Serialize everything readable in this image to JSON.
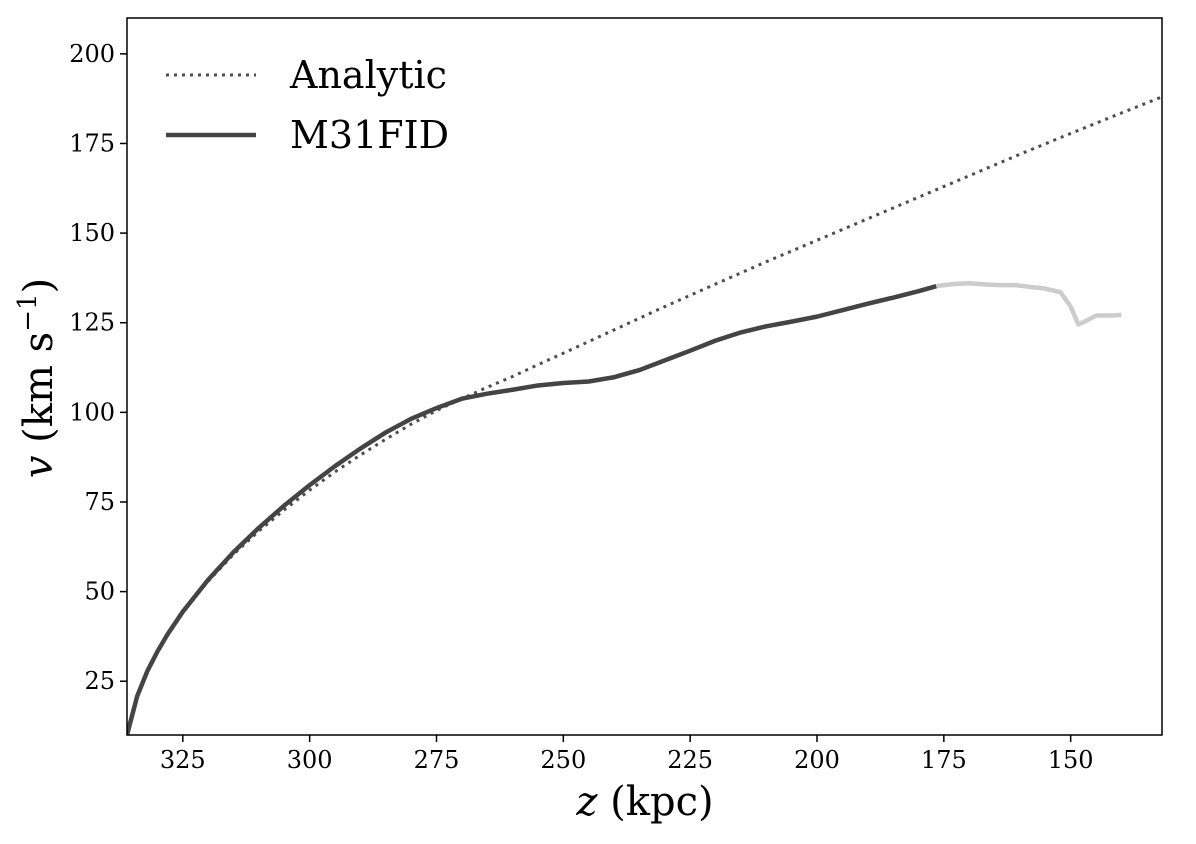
{
  "chart_data": {
    "type": "line",
    "xlabel": "z (kpc)",
    "xlabel_var": "z",
    "xlabel_unit": " (kpc)",
    "ylabel": "v (km s−1)",
    "ylabel_var": "v",
    "ylabel_pre": " (km s",
    "ylabel_sup": "−1",
    "ylabel_post": ")",
    "xlim": [
      336,
      132
    ],
    "ylim": [
      10,
      210
    ],
    "x_reversed": true,
    "xticks": [
      325,
      300,
      275,
      250,
      225,
      200,
      175,
      150
    ],
    "yticks": [
      25,
      50,
      75,
      100,
      125,
      150,
      175,
      200
    ],
    "grid": false,
    "legend_position": "top-left",
    "series": [
      {
        "name": "Analytic",
        "style": "dotted",
        "color": "#4d4d4d",
        "x": [
          336,
          334,
          332,
          330,
          328,
          325,
          320,
          315,
          310,
          305,
          300,
          295,
          290,
          285,
          280,
          275,
          270,
          265,
          260,
          255,
          250,
          240,
          230,
          220,
          210,
          200,
          190,
          180,
          170,
          160,
          150,
          140,
          132
        ],
        "y": [
          10,
          20.8,
          27.8,
          33.3,
          38.1,
          44.3,
          52.9,
          60.4,
          66.9,
          72.8,
          78.3,
          83.4,
          88.1,
          92.5,
          96.7,
          100.5,
          103.8,
          107.0,
          110.0,
          113.3,
          116.5,
          123.0,
          129.5,
          135.8,
          142.0,
          148.0,
          154.0,
          160.0,
          166.0,
          172.0,
          177.8,
          183.5,
          188.0
        ]
      },
      {
        "name": "M31FID",
        "style": "solid",
        "color": "#444444",
        "x": [
          336,
          334,
          332,
          330,
          328,
          325,
          320,
          315,
          310,
          305,
          300,
          295,
          290,
          285,
          280,
          275,
          270,
          265,
          260,
          255,
          250,
          245,
          240,
          235,
          230,
          225,
          220,
          215,
          210,
          205,
          200,
          195,
          190,
          185,
          180,
          176.5
        ],
        "y": [
          10,
          20.8,
          27.8,
          33.3,
          38.1,
          44.4,
          53.3,
          61.0,
          67.8,
          74.0,
          79.7,
          85.0,
          89.9,
          94.4,
          98.2,
          101.2,
          103.8,
          105.2,
          106.3,
          107.5,
          108.2,
          108.6,
          109.8,
          111.8,
          114.5,
          117.2,
          120.0,
          122.3,
          124.0,
          125.3,
          126.7,
          128.5,
          130.3,
          132.0,
          133.8,
          135.2
        ]
      },
      {
        "name": "",
        "style": "solid",
        "color": "#cccccc",
        "x": [
          176.5,
          173,
          170,
          167,
          164,
          161,
          158,
          155,
          152,
          150,
          148.5,
          147,
          145,
          142,
          140
        ],
        "y": [
          135.2,
          135.8,
          136.0,
          135.7,
          135.5,
          135.5,
          135.0,
          134.5,
          133.5,
          129.5,
          124.5,
          125.5,
          127.0,
          127.0,
          127.2
        ]
      }
    ]
  }
}
